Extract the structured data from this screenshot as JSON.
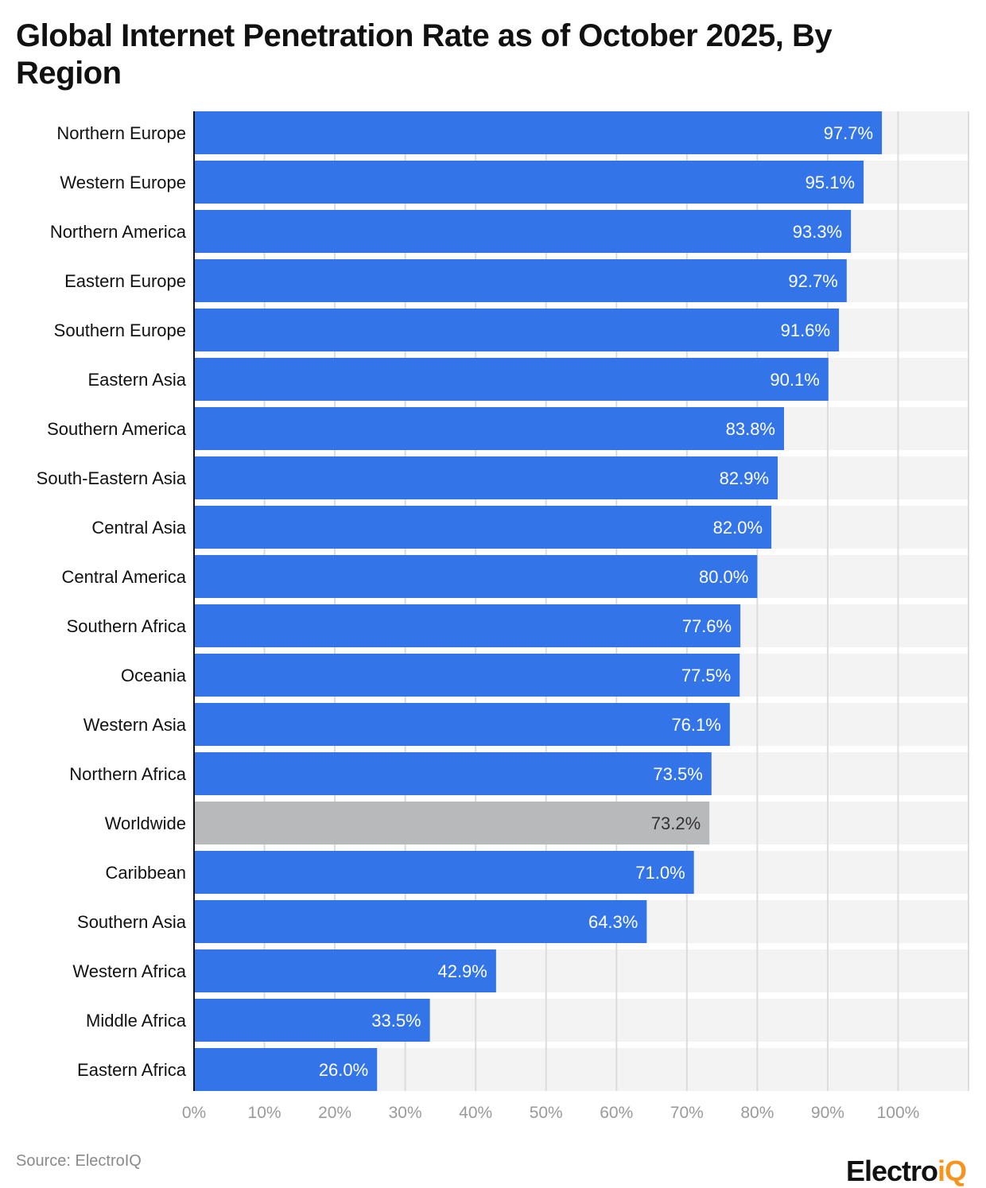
{
  "title": "Global Internet Penetration Rate as of October 2025, By Region",
  "source": "Source: ElectroIQ",
  "logo": {
    "main": "Electro",
    "accent": "iQ"
  },
  "colors": {
    "bar": "#3375e9",
    "highlight": "#b8b9bb",
    "band": "#f3f3f3",
    "grid": "#dcdcdc",
    "tick": "#9a9a9a",
    "logo_accent": "#f7941d"
  },
  "chart_data": {
    "type": "bar",
    "orientation": "horizontal",
    "categories": [
      "Northern Europe",
      "Western Europe",
      "Northern America",
      "Eastern Europe",
      "Southern Europe",
      "Eastern Asia",
      "Southern America",
      "South-Eastern Asia",
      "Central Asia",
      "Central America",
      "Southern Africa",
      "Oceania",
      "Western Asia",
      "Northern Africa",
      "Worldwide",
      "Caribbean",
      "Southern Asia",
      "Western Africa",
      "Middle Africa",
      "Eastern Africa"
    ],
    "values": [
      97.7,
      95.1,
      93.3,
      92.7,
      91.6,
      90.1,
      83.8,
      82.9,
      82.0,
      80.0,
      77.6,
      77.5,
      76.1,
      73.5,
      73.2,
      71.0,
      64.3,
      42.9,
      33.5,
      26.0
    ],
    "highlighted": [
      "Worldwide"
    ],
    "xlim": [
      0,
      110
    ],
    "xticks": [
      0,
      10,
      20,
      30,
      40,
      50,
      60,
      70,
      80,
      90,
      100
    ],
    "tick_suffix": "%",
    "grid": true,
    "data_labels": true
  }
}
